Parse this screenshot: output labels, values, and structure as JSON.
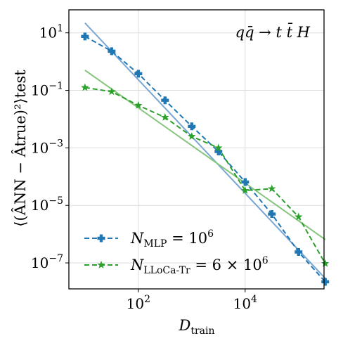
{
  "chart_data": {
    "type": "line",
    "xscale": "log",
    "yscale": "log",
    "xlim": [
      5.0,
      300000
    ],
    "ylim": [
      1.25e-08,
      63
    ],
    "x_ticks": [
      {
        "value": 100,
        "base": "10",
        "exp": "2"
      },
      {
        "value": 10000,
        "base": "10",
        "exp": "4"
      }
    ],
    "y_ticks": [
      {
        "value": 10,
        "base": "10",
        "exp": "1"
      },
      {
        "value": 0.1,
        "base": "10",
        "exp": "−1"
      },
      {
        "value": 0.001,
        "base": "10",
        "exp": "−3"
      },
      {
        "value": 1e-05,
        "base": "10",
        "exp": "−5"
      },
      {
        "value": 1e-07,
        "base": "10",
        "exp": "−7"
      }
    ],
    "xlabel": {
      "main": "D",
      "sub": "train"
    },
    "ylabel": {
      "text": "⟨(ÂNN − Âtrue)²⟩test"
    },
    "annotation": "qq̄ → t t̄ H",
    "grid": true,
    "legend_position": "lower-left",
    "series": [
      {
        "legend_main": "N",
        "legend_sub": "MLP",
        "legend_rest": " = 10",
        "legend_sup": "6",
        "color": "#1f77b4",
        "marker": "plus",
        "x": [
          10,
          31.6,
          100,
          316,
          1000,
          3160,
          10000,
          31600,
          100000,
          316000
        ],
        "y": [
          7.5,
          2.3,
          0.38,
          0.045,
          0.0056,
          0.00075,
          6.5e-05,
          5e-06,
          2.4e-07,
          2.2e-08
        ]
      },
      {
        "legend_main": "N",
        "legend_sub": "LLoCa-Tr",
        "legend_rest": " = 6 × 10",
        "legend_sup": "6",
        "color": "#2ca02c",
        "marker": "star",
        "x": [
          10,
          31.6,
          100,
          316,
          1000,
          3160,
          10000,
          31600,
          100000,
          316000
        ],
        "y": [
          0.125,
          0.09,
          0.03,
          0.0115,
          0.0025,
          0.001,
          3.3e-05,
          3.8e-05,
          4e-06,
          9.5e-08
        ]
      }
    ],
    "fits": [
      {
        "color": "#7aa6d6",
        "x": [
          10,
          316000
        ],
        "y": [
          22,
          2.9e-08
        ]
      },
      {
        "color": "#86c57d",
        "x": [
          10,
          316000
        ],
        "y": [
          0.5,
          6.5e-07
        ]
      }
    ]
  }
}
